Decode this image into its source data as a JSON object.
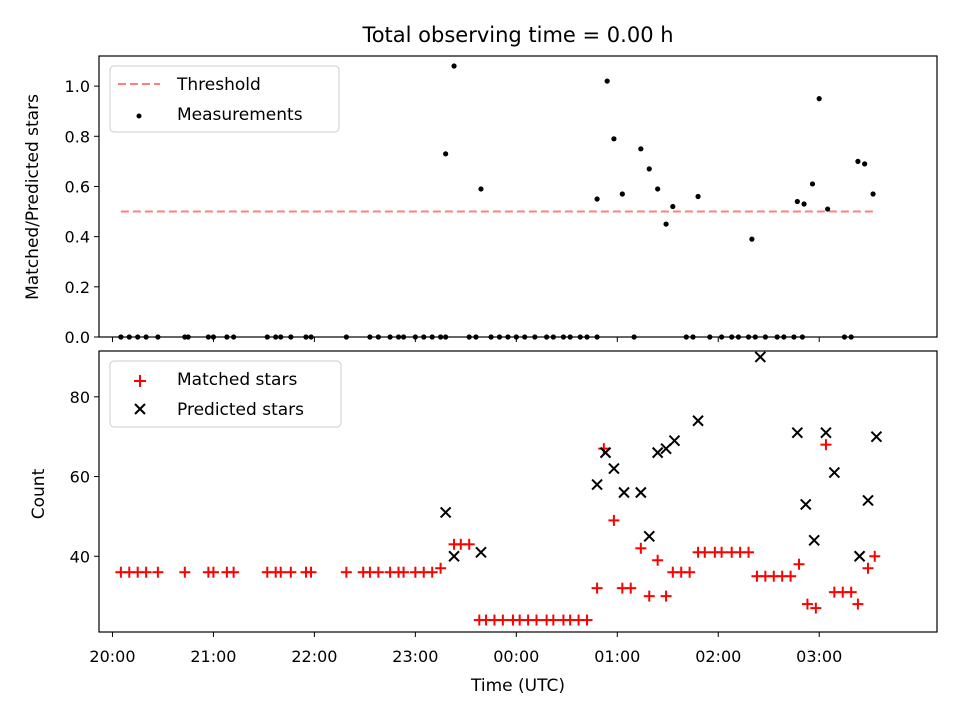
{
  "title": "Total observing time = 0.00 h",
  "colors": {
    "threshold": "#ff7f7f",
    "measurements": "#000000",
    "matched": "#ff0000",
    "predicted": "#000000"
  },
  "chart_data": [
    {
      "type": "scatter",
      "ylabel": "Matched/Predicted stars",
      "xlabel": "",
      "xlim": [
        "19:52",
        "04:10"
      ],
      "ylim": [
        0,
        1.12
      ],
      "yticks": [
        0.0,
        0.2,
        0.4,
        0.6,
        0.8,
        1.0
      ],
      "ytick_labels": [
        "0.0",
        "0.2",
        "0.4",
        "0.6",
        "0.8",
        "1.0"
      ],
      "legend_position": "top-left",
      "threshold": {
        "name": "Threshold",
        "value": 0.5,
        "x_start": "20:05",
        "x_end": "03:33"
      },
      "measurements": {
        "name": "Measurements",
        "points": [
          [
            "20:05",
            0
          ],
          [
            "20:10",
            0
          ],
          [
            "20:15",
            0
          ],
          [
            "20:20",
            0
          ],
          [
            "20:27",
            0
          ],
          [
            "20:45",
            0
          ],
          [
            "20:43",
            0
          ],
          [
            "20:57",
            0
          ],
          [
            "21:00",
            0
          ],
          [
            "21:08",
            0
          ],
          [
            "21:12",
            0
          ],
          [
            "21:32",
            0
          ],
          [
            "21:37",
            0
          ],
          [
            "21:40",
            0
          ],
          [
            "21:46",
            0
          ],
          [
            "21:55",
            0
          ],
          [
            "21:58",
            0
          ],
          [
            "22:19",
            0
          ],
          [
            "22:33",
            0
          ],
          [
            "22:38",
            0
          ],
          [
            "22:45",
            0
          ],
          [
            "22:50",
            0
          ],
          [
            "22:53",
            0
          ],
          [
            "23:00",
            0
          ],
          [
            "23:05",
            0
          ],
          [
            "23:10",
            0
          ],
          [
            "23:15",
            0
          ],
          [
            "23:18",
            0
          ],
          [
            "23:32",
            0
          ],
          [
            "23:36",
            0
          ],
          [
            "23:45",
            0
          ],
          [
            "23:50",
            0
          ],
          [
            "23:55",
            0
          ],
          [
            "00:00",
            0
          ],
          [
            "00:05",
            0
          ],
          [
            "00:11",
            0
          ],
          [
            "00:18",
            0
          ],
          [
            "00:22",
            0
          ],
          [
            "00:28",
            0
          ],
          [
            "00:32",
            0
          ],
          [
            "00:38",
            0
          ],
          [
            "00:42",
            0
          ],
          [
            "00:48",
            0
          ],
          [
            "01:10",
            0
          ],
          [
            "01:41",
            0
          ],
          [
            "01:45",
            0
          ],
          [
            "01:55",
            0
          ],
          [
            "02:02",
            0
          ],
          [
            "02:08",
            0
          ],
          [
            "02:12",
            0
          ],
          [
            "02:18",
            0
          ],
          [
            "02:22",
            0
          ],
          [
            "02:28",
            0
          ],
          [
            "02:35",
            0
          ],
          [
            "02:39",
            0
          ],
          [
            "02:45",
            0
          ],
          [
            "02:50",
            0
          ],
          [
            "03:15",
            0
          ],
          [
            "03:19",
            0
          ],
          [
            "23:18",
            0.73
          ],
          [
            "23:23",
            1.08
          ],
          [
            "23:39",
            0.59
          ],
          [
            "00:48",
            0.55
          ],
          [
            "00:54",
            1.02
          ],
          [
            "00:58",
            0.79
          ],
          [
            "01:03",
            0.57
          ],
          [
            "01:14",
            0.75
          ],
          [
            "01:19",
            0.67
          ],
          [
            "01:24",
            0.59
          ],
          [
            "01:29",
            0.45
          ],
          [
            "01:33",
            0.52
          ],
          [
            "01:48",
            0.56
          ],
          [
            "02:20",
            0.39
          ],
          [
            "02:47",
            0.54
          ],
          [
            "02:51",
            0.53
          ],
          [
            "02:56",
            0.61
          ],
          [
            "03:00",
            0.95
          ],
          [
            "03:05",
            0.51
          ],
          [
            "03:23",
            0.7
          ],
          [
            "03:27",
            0.69
          ],
          [
            "03:32",
            0.57
          ]
        ]
      }
    },
    {
      "type": "scatter",
      "ylabel": "Count",
      "xlabel": "Time (UTC)",
      "xlim": [
        "19:52",
        "04:10"
      ],
      "ylim": [
        21,
        91.5
      ],
      "yticks": [
        40,
        60,
        80
      ],
      "ytick_labels": [
        "40",
        "60",
        "80"
      ],
      "xticks": [
        "20:00",
        "21:00",
        "22:00",
        "23:00",
        "00:00",
        "01:00",
        "02:00",
        "03:00"
      ],
      "legend_position": "top-left",
      "series": [
        {
          "name": "Matched stars",
          "marker": "plus",
          "points": [
            [
              "20:05",
              36
            ],
            [
              "20:10",
              36
            ],
            [
              "20:15",
              36
            ],
            [
              "20:20",
              36
            ],
            [
              "20:27",
              36
            ],
            [
              "20:43",
              36
            ],
            [
              "20:57",
              36
            ],
            [
              "21:00",
              36
            ],
            [
              "21:08",
              36
            ],
            [
              "21:12",
              36
            ],
            [
              "21:32",
              36
            ],
            [
              "21:37",
              36
            ],
            [
              "21:40",
              36
            ],
            [
              "21:46",
              36
            ],
            [
              "21:55",
              36
            ],
            [
              "21:58",
              36
            ],
            [
              "22:19",
              36
            ],
            [
              "22:29",
              36
            ],
            [
              "22:33",
              36
            ],
            [
              "22:38",
              36
            ],
            [
              "22:45",
              36
            ],
            [
              "22:50",
              36
            ],
            [
              "22:53",
              36
            ],
            [
              "23:00",
              36
            ],
            [
              "23:05",
              36
            ],
            [
              "23:10",
              36
            ],
            [
              "23:15",
              37
            ],
            [
              "23:23",
              43
            ],
            [
              "23:27",
              43
            ],
            [
              "23:32",
              43
            ],
            [
              "23:38",
              24
            ],
            [
              "23:42",
              24
            ],
            [
              "23:47",
              24
            ],
            [
              "23:52",
              24
            ],
            [
              "23:58",
              24
            ],
            [
              "00:02",
              24
            ],
            [
              "00:07",
              24
            ],
            [
              "00:12",
              24
            ],
            [
              "00:18",
              24
            ],
            [
              "00:22",
              24
            ],
            [
              "00:28",
              24
            ],
            [
              "00:32",
              24
            ],
            [
              "00:37",
              24
            ],
            [
              "00:42",
              24
            ],
            [
              "00:48",
              32
            ],
            [
              "00:52",
              67
            ],
            [
              "00:58",
              49
            ],
            [
              "01:03",
              32
            ],
            [
              "01:08",
              32
            ],
            [
              "01:14",
              42
            ],
            [
              "01:19",
              30
            ],
            [
              "01:24",
              39
            ],
            [
              "01:29",
              30
            ],
            [
              "01:33",
              36
            ],
            [
              "01:38",
              36
            ],
            [
              "01:43",
              36
            ],
            [
              "01:48",
              41
            ],
            [
              "01:52",
              41
            ],
            [
              "01:58",
              41
            ],
            [
              "02:02",
              41
            ],
            [
              "02:08",
              41
            ],
            [
              "02:13",
              41
            ],
            [
              "02:18",
              41
            ],
            [
              "02:23",
              35
            ],
            [
              "02:28",
              35
            ],
            [
              "02:33",
              35
            ],
            [
              "02:38",
              35
            ],
            [
              "02:43",
              35
            ],
            [
              "02:48",
              38
            ],
            [
              "02:53",
              28
            ],
            [
              "02:58",
              27
            ],
            [
              "03:04",
              68
            ],
            [
              "03:09",
              31
            ],
            [
              "03:14",
              31
            ],
            [
              "03:19",
              31
            ],
            [
              "03:23",
              28
            ],
            [
              "03:29",
              37
            ],
            [
              "03:33",
              40
            ]
          ]
        },
        {
          "name": "Predicted stars",
          "marker": "x",
          "points": [
            [
              "23:18",
              51
            ],
            [
              "23:23",
              40
            ],
            [
              "23:39",
              41
            ],
            [
              "00:48",
              58
            ],
            [
              "00:53",
              66
            ],
            [
              "00:58",
              62
            ],
            [
              "01:04",
              56
            ],
            [
              "01:14",
              56
            ],
            [
              "01:19",
              45
            ],
            [
              "01:24",
              66
            ],
            [
              "01:29",
              67
            ],
            [
              "01:34",
              69
            ],
            [
              "01:48",
              74
            ],
            [
              "02:25",
              90
            ],
            [
              "02:47",
              71
            ],
            [
              "02:52",
              53
            ],
            [
              "02:57",
              44
            ],
            [
              "03:04",
              71
            ],
            [
              "03:09",
              61
            ],
            [
              "03:24",
              40
            ],
            [
              "03:29",
              54
            ],
            [
              "03:34",
              70
            ]
          ]
        }
      ]
    }
  ]
}
